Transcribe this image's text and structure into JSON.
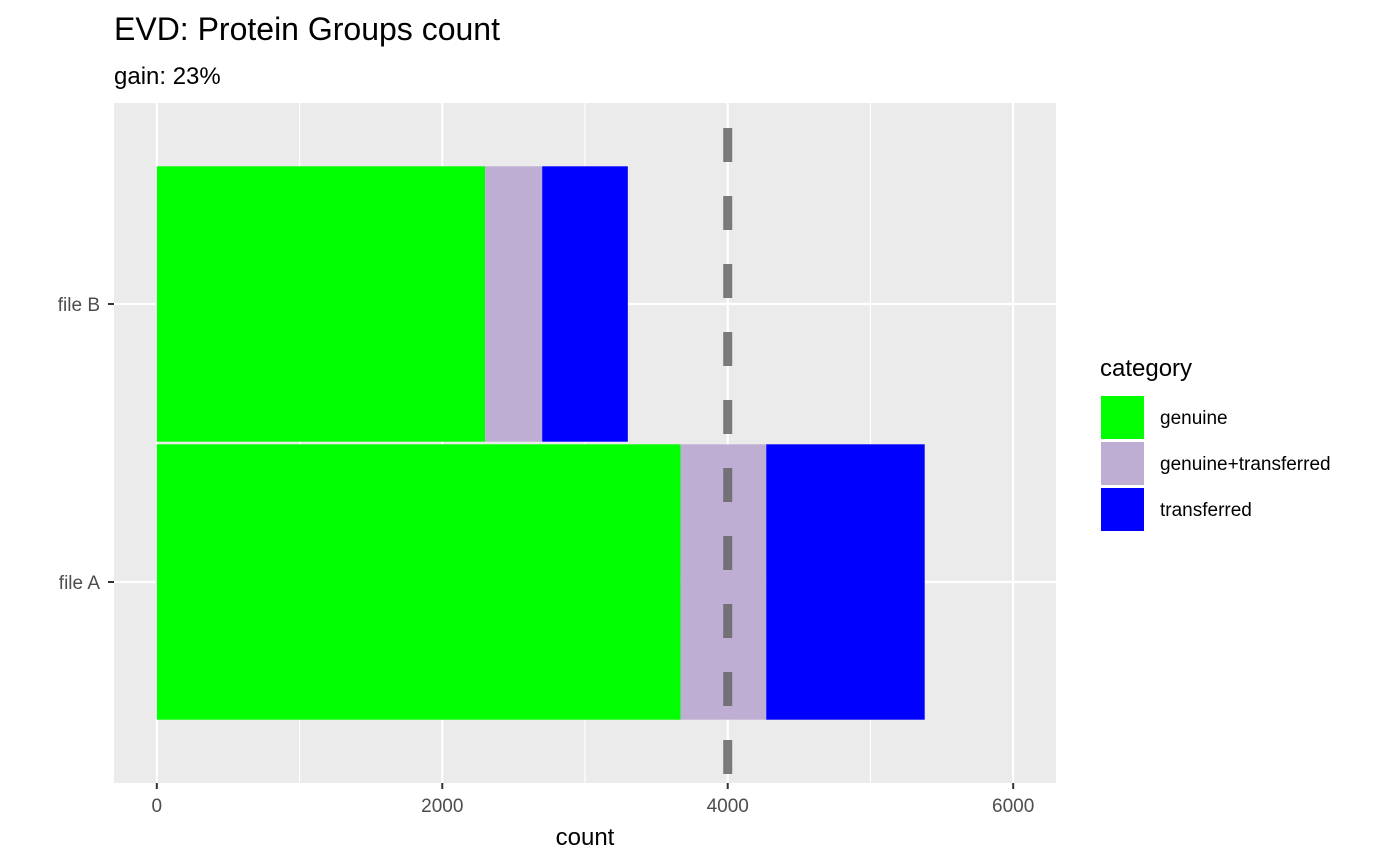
{
  "chart_data": {
    "type": "bar",
    "orientation": "horizontal",
    "stacked": true,
    "title": "EVD: Protein Groups count",
    "subtitle": "gain: 23%",
    "xlabel": "count",
    "ylabel": "",
    "categories": [
      "file A",
      "file B"
    ],
    "series": [
      {
        "name": "genuine",
        "color": "#00FF00",
        "values": [
          3670,
          2300
        ]
      },
      {
        "name": "genuine+transferred",
        "color": "#BEAED4",
        "values": [
          600,
          400
        ]
      },
      {
        "name": "transferred",
        "color": "#0000FF",
        "values": [
          1110,
          600
        ]
      }
    ],
    "xlim": [
      -300,
      6300
    ],
    "xticks": [
      0,
      2000,
      4000,
      6000
    ],
    "xtick_labels": [
      "0",
      "2000",
      "4000",
      "6000"
    ],
    "reference_line": {
      "x": 4000,
      "style": "dashed",
      "color": "#666666"
    },
    "legend": {
      "title": "category",
      "position": "right"
    },
    "grid": true,
    "panel_background": "#EBEBEB"
  }
}
